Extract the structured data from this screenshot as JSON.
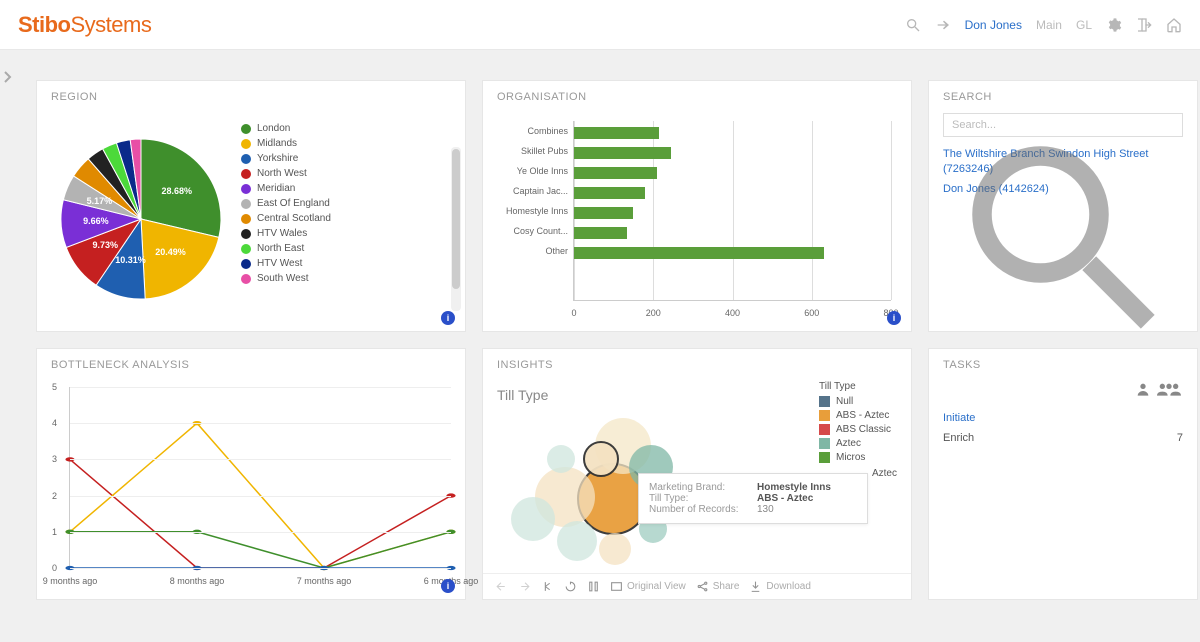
{
  "header": {
    "logo_main": "Stibo",
    "logo_sub": "Systems",
    "logo_color": "#e86a1c",
    "user": "Don Jones",
    "nav1": "Main",
    "nav2": "GL"
  },
  "region": {
    "title": "REGION",
    "slices": [
      {
        "label": "London",
        "value": 28.68,
        "color": "#3f8f2c",
        "showPct": true
      },
      {
        "label": "Midlands",
        "value": 20.49,
        "color": "#f0b500",
        "showPct": true
      },
      {
        "label": "Yorkshire",
        "value": 10.31,
        "color": "#1f5fb0",
        "showPct": true
      },
      {
        "label": "North West",
        "value": 9.73,
        "color": "#c52020",
        "showPct": true
      },
      {
        "label": "Meridian",
        "value": 9.66,
        "color": "#7a2fd6",
        "showPct": true
      },
      {
        "label": "East Of England",
        "value": 5.17,
        "color": "#b3b3b3",
        "showPct": true
      },
      {
        "label": "Central Scotland",
        "value": 4.5,
        "color": "#e08a00",
        "showPct": false
      },
      {
        "label": "HTV Wales",
        "value": 3.5,
        "color": "#222222",
        "showPct": false
      },
      {
        "label": "North East",
        "value": 3.0,
        "color": "#4cd93a",
        "showPct": false
      },
      {
        "label": "HTV West",
        "value": 2.8,
        "color": "#0a2a8a",
        "showPct": false
      },
      {
        "label": "South West",
        "value": 2.16,
        "color": "#e84fa6",
        "showPct": false
      }
    ]
  },
  "organisation": {
    "title": "ORGANISATION",
    "xmax": 800,
    "xticks": [
      0,
      200,
      400,
      600,
      800
    ],
    "bar_color": "#5a9e3a",
    "bars": [
      {
        "label": "Combines",
        "value": 215
      },
      {
        "label": "Skillet Pubs",
        "value": 245
      },
      {
        "label": "Ye Olde Inns",
        "value": 210
      },
      {
        "label": "Captain Jac...",
        "value": 180
      },
      {
        "label": "Homestyle Inns",
        "value": 150
      },
      {
        "label": "Cosy Count...",
        "value": 135
      },
      {
        "label": "Other",
        "value": 630
      }
    ]
  },
  "search": {
    "title": "SEARCH",
    "placeholder": "Search...",
    "results": [
      "The Wiltshire Branch Swindon High Street (7263246)",
      "Don Jones  (4142624)"
    ]
  },
  "bottleneck": {
    "title": "BOTTLENECK ANALYSIS",
    "ymax": 5,
    "yticks": [
      0,
      1,
      2,
      3,
      4,
      5
    ],
    "categories": [
      "9 months ago",
      "8 months ago",
      "7 months ago",
      "6 months ago"
    ],
    "series": [
      {
        "color": "#c52020",
        "values": [
          3,
          0,
          0,
          2
        ]
      },
      {
        "color": "#f0b500",
        "values": [
          1,
          4,
          0,
          1
        ]
      },
      {
        "color": "#3f8f2c",
        "values": [
          1,
          1,
          0,
          1
        ]
      },
      {
        "color": "#1f5fb0",
        "values": [
          0,
          0,
          0,
          0
        ]
      }
    ]
  },
  "insights": {
    "title": "INSIGHTS",
    "subtitle": "Till Type",
    "legend_title": "Till Type",
    "legend": [
      {
        "label": "Null",
        "color": "#55738a"
      },
      {
        "label": "ABS - Aztec",
        "color": "#e89e3a"
      },
      {
        "label": "ABS Classic",
        "color": "#d64a4a"
      },
      {
        "label": "Aztec",
        "color": "#7fb7a5"
      },
      {
        "label": "Micros",
        "color": "#5a9e3a"
      }
    ],
    "highlight_label": "Aztec",
    "tooltip": {
      "k1": "Marketing Brand:",
      "v1": "Homestyle Inns",
      "k2": "Till Type:",
      "v2": "ABS - Aztec",
      "k3": "Number of Records:",
      "v3": "130"
    },
    "bubbles": [
      {
        "x": 110,
        "y": 88,
        "r": 36,
        "color": "#e89e3a",
        "stroke": "#333"
      },
      {
        "x": 120,
        "y": 35,
        "r": 28,
        "color": "#f4e7c7"
      },
      {
        "x": 148,
        "y": 56,
        "r": 22,
        "color": "#7fb7a5"
      },
      {
        "x": 62,
        "y": 86,
        "r": 30,
        "color": "#f4e2c2"
      },
      {
        "x": 30,
        "y": 108,
        "r": 22,
        "color": "#cfe6de"
      },
      {
        "x": 74,
        "y": 130,
        "r": 20,
        "color": "#cfe6de"
      },
      {
        "x": 112,
        "y": 138,
        "r": 16,
        "color": "#f4e2c2"
      },
      {
        "x": 150,
        "y": 118,
        "r": 14,
        "color": "#9fccc0"
      },
      {
        "x": 98,
        "y": 48,
        "r": 18,
        "color": "#f4e2c2",
        "stroke": "#333"
      },
      {
        "x": 58,
        "y": 48,
        "r": 14,
        "color": "#cfe6de"
      }
    ],
    "toolbar": {
      "original": "Original View",
      "share": "Share",
      "download": "Download"
    }
  },
  "tasks": {
    "title": "TASKS",
    "rows": [
      {
        "label": "Initiate",
        "link": true,
        "count": ""
      },
      {
        "label": "Enrich",
        "link": false,
        "count": "7"
      }
    ]
  }
}
